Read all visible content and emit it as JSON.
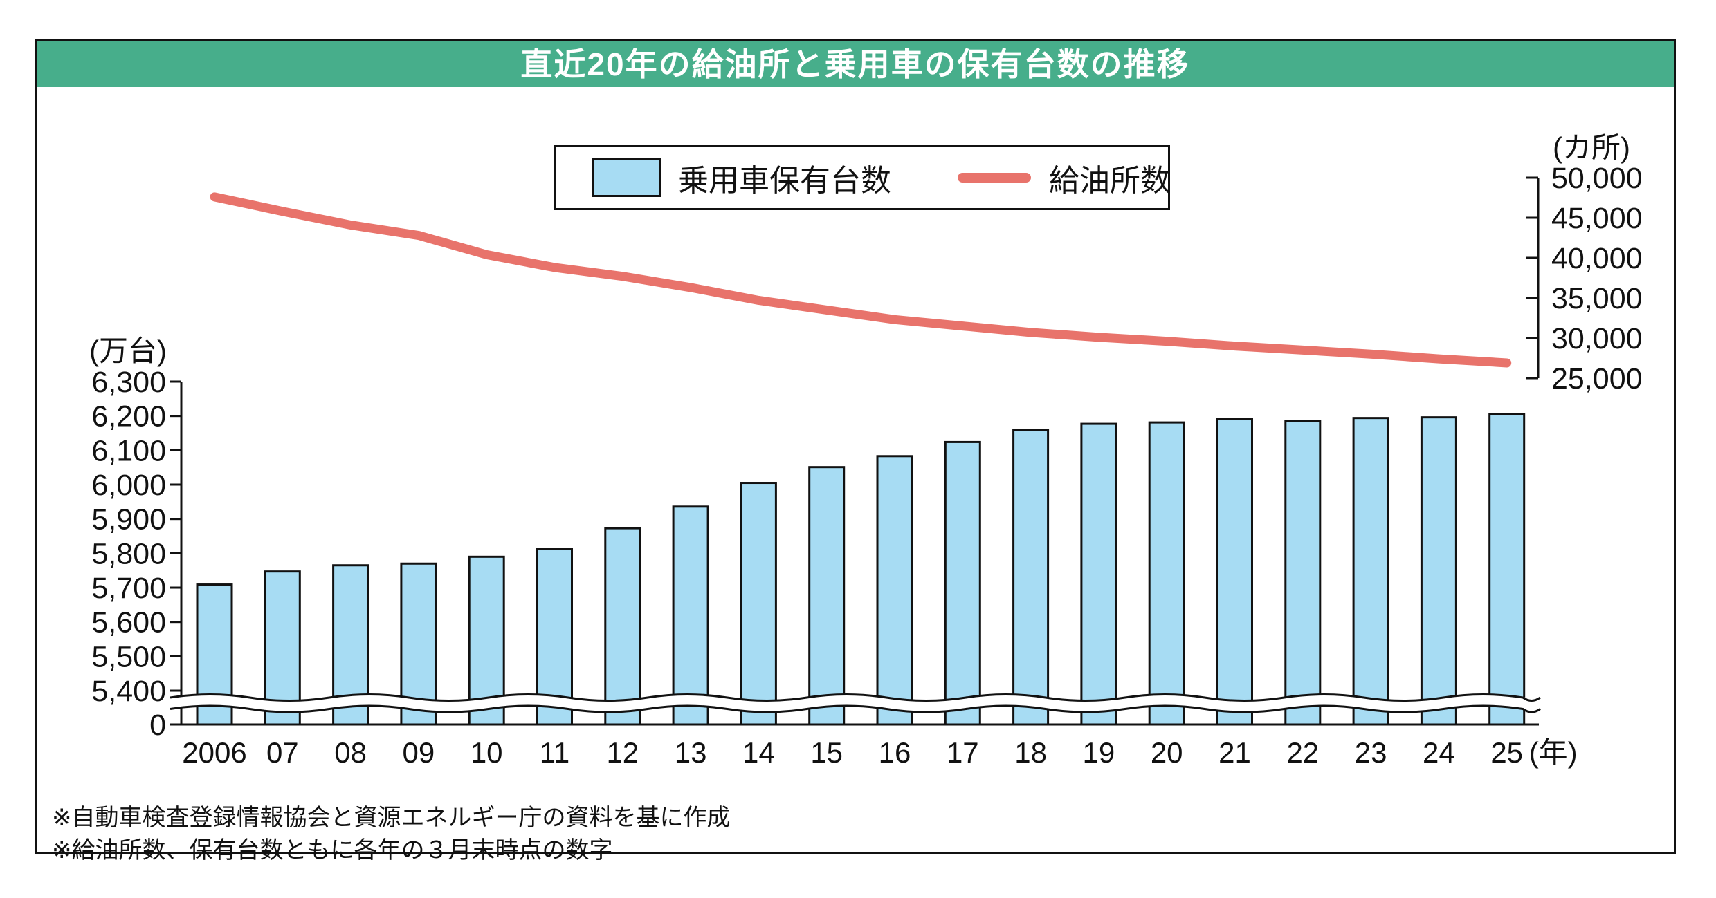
{
  "page": {
    "title_bar": {
      "text": "直近20年の給油所と乗用車の保有台数の推移",
      "bg_color": "#47AE8B",
      "text_color": "#FFFFFF"
    }
  },
  "footnotes": [
    "※自動車検査登録情報協会と資源エネルギー庁の資料を基に作成",
    "※給油所数、保有台数ともに各年の３月末時点の数字"
  ],
  "chart_data": {
    "type": "combo_bar_line",
    "title": "直近20年の給油所と乗用車の保有台数の推移",
    "categories": [
      "2006",
      "07",
      "08",
      "09",
      "10",
      "11",
      "12",
      "13",
      "14",
      "15",
      "16",
      "17",
      "18",
      "19",
      "20",
      "21",
      "22",
      "23",
      "24",
      "25"
    ],
    "x_axis_unit_suffix": "(年)",
    "series": [
      {
        "name": "乗用車保有台数",
        "type": "bar",
        "axis": "left",
        "unit": "万台",
        "color": "#A7DCF3",
        "values": [
          5709,
          5747,
          5765,
          5770,
          5790,
          5812,
          5873,
          5936,
          6005,
          6051,
          6083,
          6124,
          6160,
          6177,
          6181,
          6192,
          6186,
          6194,
          6196,
          6205
        ]
      },
      {
        "name": "給油所数",
        "type": "line",
        "axis": "right",
        "unit": "カ所",
        "color": "#E8736B",
        "values": [
          47600,
          45800,
          44100,
          42800,
          40400,
          38800,
          37700,
          36300,
          34700,
          33500,
          32300,
          31500,
          30700,
          30100,
          29600,
          29000,
          28500,
          28000,
          27400,
          26900
        ]
      }
    ],
    "left_axis": {
      "unit_label": "(万台)",
      "tick_values": [
        6300,
        6200,
        6100,
        6000,
        5900,
        5800,
        5700,
        5600,
        5500,
        5400
      ],
      "zero_tick_label": "0",
      "has_axis_break": true,
      "range": [
        5400,
        6300
      ]
    },
    "right_axis": {
      "unit_label": "(カ所)",
      "tick_values": [
        50000,
        45000,
        40000,
        35000,
        30000,
        25000
      ],
      "range": [
        25000,
        50000
      ]
    },
    "legend_position": "top-center",
    "grid": false
  }
}
